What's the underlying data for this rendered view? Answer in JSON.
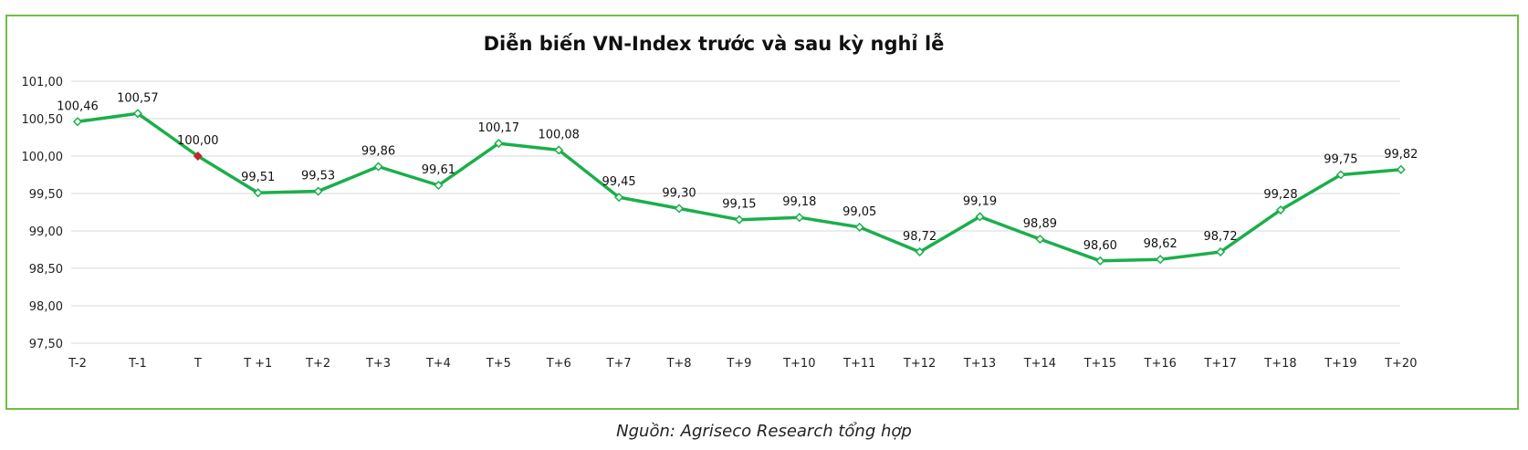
{
  "chart_data": {
    "type": "line",
    "title": "Diễn biến VN-Index trước và sau kỳ nghỉ lễ",
    "categories": [
      "T-2",
      "T-1",
      "T",
      "T +1",
      "T+2",
      "T+3",
      "T+4",
      "T+5",
      "T+6",
      "T+7",
      "T+8",
      "T+9",
      "T+10",
      "T+11",
      "T+12",
      "T+13",
      "T+14",
      "T+15",
      "T+16",
      "T+17",
      "T+18",
      "T+19",
      "T+20"
    ],
    "values": [
      100.46,
      100.57,
      100.0,
      99.51,
      99.53,
      99.86,
      99.61,
      100.17,
      100.08,
      99.45,
      99.3,
      99.15,
      99.18,
      99.05,
      98.72,
      99.19,
      98.89,
      98.6,
      98.62,
      98.72,
      99.28,
      99.75,
      99.82
    ],
    "value_labels": [
      "100,46",
      "100,57",
      "100,00",
      "99,51",
      "99,53",
      "99,86",
      "99,61",
      "100,17",
      "100,08",
      "99,45",
      "99,30",
      "99,15",
      "99,18",
      "99,05",
      "98,72",
      "99,19",
      "98,89",
      "98,60",
      "98,62",
      "98,72",
      "99,28",
      "99,75",
      "99,82"
    ],
    "ylim": [
      97.5,
      101.0
    ],
    "yticks": [
      97.5,
      98.0,
      98.5,
      99.0,
      99.5,
      100.0,
      100.5,
      101.0
    ],
    "ytick_labels": [
      "97,50",
      "98,00",
      "98,50",
      "99,00",
      "99,50",
      "100,00",
      "100,50",
      "101,00"
    ],
    "xlabel": "",
    "ylabel": "",
    "grid": true,
    "highlight_index": 2,
    "line_color": "#1aaf4b",
    "highlight_color": "#c0282d",
    "grid_color": "#d9d9d9"
  },
  "source": "Nguồn: Agriseco Research tổng hợp"
}
